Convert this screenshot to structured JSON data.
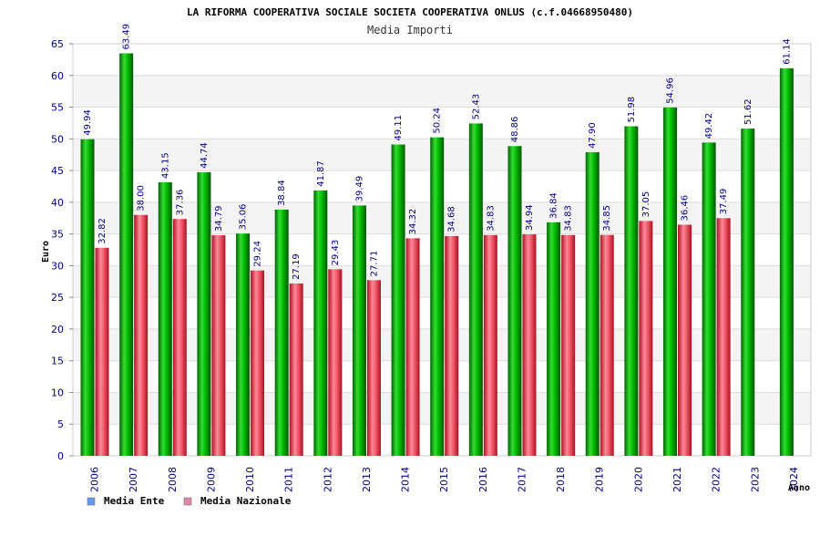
{
  "chart_data": {
    "type": "bar",
    "title": "LA RIFORMA COOPERATIVA SOCIALE SOCIETA COOPERATIVA ONLUS (c.f.04668950480)",
    "subtitle": "Media Importi",
    "xlabel": "Anno",
    "ylabel": "Euro",
    "ylim": [
      0,
      65
    ],
    "yticks": [
      0,
      5,
      10,
      15,
      20,
      25,
      30,
      35,
      40,
      45,
      50,
      55,
      60,
      65
    ],
    "categories": [
      "2006",
      "2007",
      "2008",
      "2009",
      "2010",
      "2011",
      "2012",
      "2013",
      "2014",
      "2015",
      "2016",
      "2017",
      "2018",
      "2019",
      "2020",
      "2021",
      "2022",
      "2023",
      "2024"
    ],
    "series": [
      {
        "name": "Media Ente",
        "color": "#00aa00",
        "values": [
          49.94,
          63.49,
          43.15,
          44.74,
          35.06,
          38.84,
          41.87,
          39.49,
          49.11,
          50.24,
          52.43,
          48.86,
          36.84,
          47.9,
          51.98,
          54.96,
          49.42,
          51.62,
          61.14
        ],
        "labels": [
          "49.94",
          "63.49",
          "43.15",
          "44.74",
          "35.06",
          "38.84",
          "41.87",
          "39.49",
          "49.11",
          "50.24",
          "52.43",
          "48.86",
          "36.84",
          "47.90",
          "51.98",
          "54.96",
          "49.42",
          "51.62",
          "61.14"
        ]
      },
      {
        "name": "Media Nazionale",
        "color": "#dd2233",
        "values": [
          32.82,
          38.0,
          37.36,
          34.79,
          29.24,
          27.19,
          29.43,
          27.71,
          34.32,
          34.68,
          34.83,
          34.94,
          34.83,
          34.85,
          37.05,
          36.46,
          37.49,
          null,
          null
        ],
        "labels": [
          "32.82",
          "38.00",
          "37.36",
          "34.79",
          "29.24",
          "27.19",
          "29.43",
          "27.71",
          "34.32",
          "34.68",
          "34.83",
          "34.94",
          "34.83",
          "34.85",
          "37.05",
          "36.46",
          "37.49",
          "",
          ""
        ]
      }
    ],
    "legend": [
      {
        "name": "Media Ente",
        "swatch": "#6699ee"
      },
      {
        "name": "Media Nazionale",
        "swatch": "#dd88aa"
      }
    ],
    "legend_position": "bottom-left",
    "grid": true
  }
}
